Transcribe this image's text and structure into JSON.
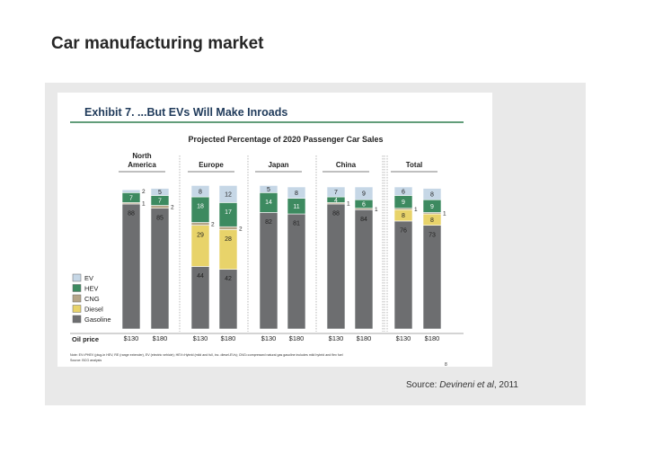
{
  "slide": {
    "title": "Car manufacturing market"
  },
  "exhibit": {
    "title": "Exhibit 7.  ...But EVs Will Make Inroads",
    "subtitle": "Projected Percentage of 2020 Passenger Car Sales",
    "oil_price_label": "Oil price",
    "note": "Note: EV=PHEV (plug-in HEV, RE (range extender), EV (electric vehicle); HEV=Hybrid (mild and full, inc. diesel-EVs); CNG=compressed natural gas gasoline includes mild hybrid and flex fuel",
    "note_source": "Source: BCG analysis",
    "page_number": "8"
  },
  "source": {
    "prefix": "Source: ",
    "authors": "Devineni et al",
    "year": ", 2011"
  },
  "chart_data": {
    "type": "bar",
    "stacked": true,
    "normalized_to": 100,
    "title": "Projected Percentage of 2020 Passenger Car Sales",
    "xlabel": "Oil price",
    "ylabel": "",
    "ylim": [
      0,
      100
    ],
    "regions": [
      "North\nAmerica",
      "Europe",
      "Japan",
      "China",
      "Total"
    ],
    "categories": [
      "$130",
      "$180",
      "$130",
      "$180",
      "$130",
      "$180",
      "$130",
      "$180",
      "$130",
      "$180"
    ],
    "series": [
      {
        "name": "Gasoline",
        "color": "#6d6e70",
        "values": [
          88,
          85,
          44,
          42,
          82,
          81,
          88,
          84,
          76,
          73
        ]
      },
      {
        "name": "Diesel",
        "color": "#e8d36a",
        "values": [
          0,
          0,
          29,
          28,
          0,
          0,
          0,
          0,
          8,
          8
        ]
      },
      {
        "name": "CNG",
        "color": "#b5a588",
        "values": [
          1,
          2,
          2,
          2,
          0,
          0,
          1,
          1,
          1,
          1
        ]
      },
      {
        "name": "HEV",
        "color": "#3d8a60",
        "values": [
          7,
          7,
          18,
          17,
          14,
          11,
          4,
          6,
          9,
          9
        ]
      },
      {
        "name": "EV",
        "color": "#c6d7e6",
        "values": [
          2,
          5,
          8,
          12,
          5,
          8,
          7,
          9,
          6,
          8
        ]
      }
    ],
    "legend": [
      "EV",
      "HEV",
      "CNG",
      "Diesel",
      "Gasoline"
    ],
    "legend_position": "left"
  }
}
